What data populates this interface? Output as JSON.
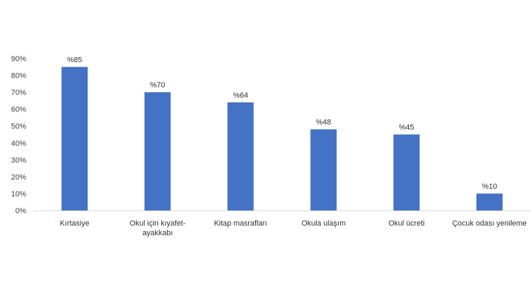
{
  "chart_data": {
    "type": "bar",
    "categories": [
      "Kırtasiye",
      "Okul için kıyafet-ayakkabı",
      "Kitap masrafları",
      "Okula ulaşım",
      "Okul ücreti",
      "Çocuk odası yenileme"
    ],
    "values": [
      85,
      70,
      64,
      48,
      45,
      10
    ],
    "data_labels": [
      "%85",
      "%70",
      "%64",
      "%48",
      "%45",
      "%10"
    ],
    "y_ticks": [
      "0%",
      "10%",
      "20%",
      "30%",
      "40%",
      "50%",
      "60%",
      "70%",
      "80%",
      "90%"
    ],
    "ylim": [
      0,
      90
    ],
    "grid": false,
    "bar_color": "#4472C4",
    "axis_color": "#D9D9D9"
  }
}
